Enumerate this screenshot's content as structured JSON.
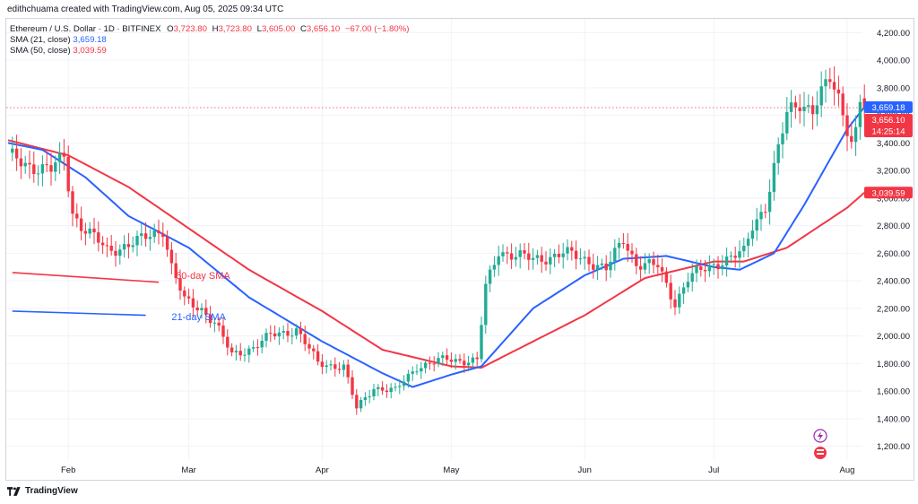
{
  "header": {
    "credit": "edithchuama created with TradingView.com, Aug 05, 2025 09:34 UTC"
  },
  "legend": {
    "symbol": "Ethereum / U.S. Dollar · 1D · BITFINEX",
    "open_label": "O",
    "open": "3,723.80",
    "high_label": "H",
    "high": "3,723.80",
    "low_label": "L",
    "low": "3,605.00",
    "close_label": "C",
    "close": "3,656.10",
    "change": "−67.00 (−1.80%)",
    "sma21_label": "SMA (21, close)",
    "sma21_value": "3,659.18",
    "sma50_label": "SMA (50, close)",
    "sma50_value": "3,039.59"
  },
  "footer": {
    "brand": "TradingView"
  },
  "colors": {
    "up": "#22ab94",
    "down": "#f23645",
    "sma21": "#2962ff",
    "sma50": "#f23645",
    "grid": "#f0f3fa"
  },
  "chart_data": {
    "type": "candlestick",
    "title": "Ethereum / U.S. Dollar · 1D · BITFINEX",
    "ylim": [
      1100,
      4300
    ],
    "y_ticks": [
      1200,
      1400,
      1600,
      1800,
      2000,
      2200,
      2400,
      2600,
      2800,
      3000,
      3200,
      3400,
      3600,
      3800,
      4000,
      4200
    ],
    "y_tick_labels": [
      "1,200.00",
      "1,400.00",
      "1,600.00",
      "1,800.00",
      "2,000.00",
      "2,200.00",
      "2,400.00",
      "2,600.00",
      "2,800.00",
      "3,000.00",
      "3,200.00",
      "3,400.00",
      "3,600.00",
      "3,800.00",
      "4,000.00",
      "4,200.00"
    ],
    "x_labels": [
      {
        "date": "2025-02-01",
        "label": "Feb"
      },
      {
        "date": "2025-03-01",
        "label": "Mar"
      },
      {
        "date": "2025-04-01",
        "label": "Apr"
      },
      {
        "date": "2025-05-01",
        "label": "May"
      },
      {
        "date": "2025-06-01",
        "label": "Jun"
      },
      {
        "date": "2025-07-01",
        "label": "Jul"
      },
      {
        "date": "2025-08-01",
        "label": "Aug"
      }
    ],
    "first_date": "2025-01-18",
    "close_keypoints": [
      [
        "2025-01-18",
        3300
      ],
      [
        "2025-01-22",
        3250
      ],
      [
        "2025-01-28",
        3200
      ],
      [
        "2025-01-31",
        3300
      ],
      [
        "2025-02-02",
        2900
      ],
      [
        "2025-02-04",
        2800
      ],
      [
        "2025-02-10",
        2620
      ],
      [
        "2025-02-17",
        2680
      ],
      [
        "2025-02-23",
        2780
      ],
      [
        "2025-02-25",
        2500
      ],
      [
        "2025-02-28",
        2250
      ],
      [
        "2025-03-04",
        2200
      ],
      [
        "2025-03-07",
        2100
      ],
      [
        "2025-03-11",
        1860
      ],
      [
        "2025-03-16",
        1920
      ],
      [
        "2025-03-20",
        2000
      ],
      [
        "2025-03-26",
        2050
      ],
      [
        "2025-03-31",
        1800
      ],
      [
        "2025-04-06",
        1780
      ],
      [
        "2025-04-09",
        1470
      ],
      [
        "2025-04-13",
        1630
      ],
      [
        "2025-04-18",
        1600
      ],
      [
        "2025-04-23",
        1780
      ],
      [
        "2025-04-30",
        1830
      ],
      [
        "2025-05-07",
        1820
      ],
      [
        "2025-05-09",
        2350
      ],
      [
        "2025-05-12",
        2620
      ],
      [
        "2025-05-20",
        2550
      ],
      [
        "2025-05-27",
        2600
      ],
      [
        "2025-06-02",
        2550
      ],
      [
        "2025-06-06",
        2480
      ],
      [
        "2025-06-10",
        2700
      ],
      [
        "2025-06-13",
        2530
      ],
      [
        "2025-06-18",
        2500
      ],
      [
        "2025-06-22",
        2240
      ],
      [
        "2025-06-25",
        2420
      ],
      [
        "2025-06-30",
        2500
      ],
      [
        "2025-07-03",
        2550
      ],
      [
        "2025-07-08",
        2600
      ],
      [
        "2025-07-10",
        2800
      ],
      [
        "2025-07-13",
        2950
      ],
      [
        "2025-07-16",
        3350
      ],
      [
        "2025-07-18",
        3600
      ],
      [
        "2025-07-21",
        3700
      ],
      [
        "2025-07-24",
        3650
      ],
      [
        "2025-07-28",
        3850
      ],
      [
        "2025-07-30",
        3720
      ],
      [
        "2025-08-02",
        3430
      ],
      [
        "2025-08-03",
        3490
      ],
      [
        "2025-08-04",
        3710
      ],
      [
        "2025-08-05",
        3656.1
      ]
    ],
    "sma21_keypoints": [
      [
        "2025-01-18",
        3400
      ],
      [
        "2025-01-26",
        3350
      ],
      [
        "2025-02-05",
        3150
      ],
      [
        "2025-02-15",
        2870
      ],
      [
        "2025-03-01",
        2640
      ],
      [
        "2025-03-15",
        2280
      ],
      [
        "2025-04-01",
        1960
      ],
      [
        "2025-04-15",
        1730
      ],
      [
        "2025-04-22",
        1630
      ],
      [
        "2025-05-01",
        1720
      ],
      [
        "2025-05-08",
        1780
      ],
      [
        "2025-05-20",
        2200
      ],
      [
        "2025-06-01",
        2440
      ],
      [
        "2025-06-10",
        2560
      ],
      [
        "2025-06-20",
        2580
      ],
      [
        "2025-07-01",
        2500
      ],
      [
        "2025-07-07",
        2480
      ],
      [
        "2025-07-15",
        2600
      ],
      [
        "2025-07-22",
        2950
      ],
      [
        "2025-08-01",
        3500
      ],
      [
        "2025-08-05",
        3659.18
      ]
    ],
    "sma50_keypoints": [
      [
        "2025-01-18",
        3420
      ],
      [
        "2025-02-01",
        3310
      ],
      [
        "2025-02-15",
        3080
      ],
      [
        "2025-03-01",
        2780
      ],
      [
        "2025-03-15",
        2480
      ],
      [
        "2025-04-01",
        2180
      ],
      [
        "2025-04-15",
        1900
      ],
      [
        "2025-05-01",
        1780
      ],
      [
        "2025-05-08",
        1770
      ],
      [
        "2025-06-01",
        2150
      ],
      [
        "2025-06-15",
        2420
      ],
      [
        "2025-07-01",
        2540
      ],
      [
        "2025-07-08",
        2540
      ],
      [
        "2025-07-18",
        2640
      ],
      [
        "2025-08-01",
        2930
      ],
      [
        "2025-08-05",
        3039.59
      ]
    ],
    "price_tags": [
      {
        "value": 3659.18,
        "label": "3,659.18",
        "color": "#2962ff"
      },
      {
        "value": 3656.1,
        "label": "3,656.10",
        "color": "#f23645"
      },
      {
        "value": 3039.59,
        "label": "3,039.59",
        "color": "#f23645"
      }
    ],
    "countdown": "14:25:14",
    "drawings": [
      {
        "type": "line",
        "color": "#f23645",
        "from": [
          "2025-01-19",
          2460
        ],
        "to": [
          "2025-02-22",
          2390
        ]
      },
      {
        "type": "line",
        "color": "#2962ff",
        "from": [
          "2025-01-19",
          2180
        ],
        "to": [
          "2025-02-19",
          2150
        ]
      }
    ],
    "annotations": [
      {
        "text": "50-day SMA",
        "color": "#f23645",
        "at": [
          "2025-02-26",
          2415
        ]
      },
      {
        "text": "21-day SMA",
        "color": "#2962ff",
        "at": [
          "2025-02-25",
          2115
        ]
      }
    ]
  }
}
